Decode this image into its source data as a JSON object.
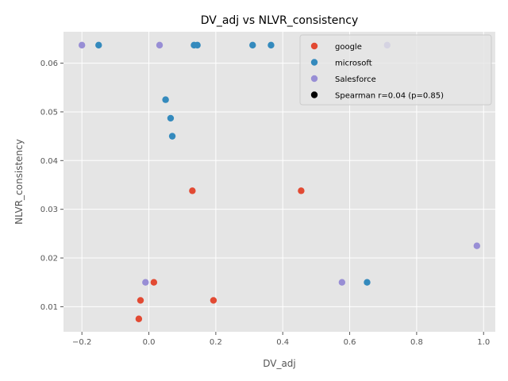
{
  "chart_data": {
    "type": "scatter",
    "title": "DV_adj vs NLVR_consistency",
    "xlabel": "DV_adj",
    "ylabel": "NLVR_consistency",
    "xlim": [
      -0.255,
      1.035
    ],
    "ylim": [
      0.00485,
      0.06645
    ],
    "xticks": [
      -0.2,
      0.0,
      0.2,
      0.4,
      0.6,
      0.8,
      1.0
    ],
    "xtick_labels": [
      "−0.2",
      "0.0",
      "0.2",
      "0.4",
      "0.6",
      "0.8",
      "1.0"
    ],
    "yticks": [
      0.01,
      0.02,
      0.03,
      0.04,
      0.05,
      0.06
    ],
    "ytick_labels": [
      "0.01",
      "0.02",
      "0.03",
      "0.04",
      "0.05",
      "0.06"
    ],
    "grid": true,
    "legend_position": "top-right",
    "series": [
      {
        "name": "google",
        "color": "#E24A33",
        "points": [
          {
            "x": 0.13,
            "y": 0.0338
          },
          {
            "x": 0.455,
            "y": 0.0338
          },
          {
            "x": 0.015,
            "y": 0.015
          },
          {
            "x": -0.025,
            "y": 0.0113
          },
          {
            "x": 0.193,
            "y": 0.0113
          },
          {
            "x": -0.03,
            "y": 0.0075
          }
        ]
      },
      {
        "name": "microsoft",
        "color": "#348ABD",
        "points": [
          {
            "x": -0.15,
            "y": 0.0637
          },
          {
            "x": 0.135,
            "y": 0.0637
          },
          {
            "x": 0.145,
            "y": 0.0637
          },
          {
            "x": 0.31,
            "y": 0.0637
          },
          {
            "x": 0.365,
            "y": 0.0637
          },
          {
            "x": 0.05,
            "y": 0.0525
          },
          {
            "x": 0.065,
            "y": 0.0487
          },
          {
            "x": 0.07,
            "y": 0.045
          },
          {
            "x": 0.652,
            "y": 0.015
          }
        ]
      },
      {
        "name": "Salesforce",
        "color": "#988ED5",
        "points": [
          {
            "x": -0.2,
            "y": 0.0637
          },
          {
            "x": 0.032,
            "y": 0.0637
          },
          {
            "x": 0.712,
            "y": 0.0637
          },
          {
            "x": 0.98,
            "y": 0.0225
          },
          {
            "x": -0.01,
            "y": 0.015
          },
          {
            "x": 0.577,
            "y": 0.015
          }
        ]
      }
    ],
    "legend_entries": [
      {
        "label": "google",
        "color": "#E24A33"
      },
      {
        "label": "microsoft",
        "color": "#348ABD"
      },
      {
        "label": "Salesforce",
        "color": "#988ED5"
      },
      {
        "label": "Spearman r=0.04 (p=0.85)",
        "color": "#000000"
      }
    ],
    "colors": {
      "plot_background": "#E5E5E5",
      "grid": "#FFFFFF"
    }
  }
}
